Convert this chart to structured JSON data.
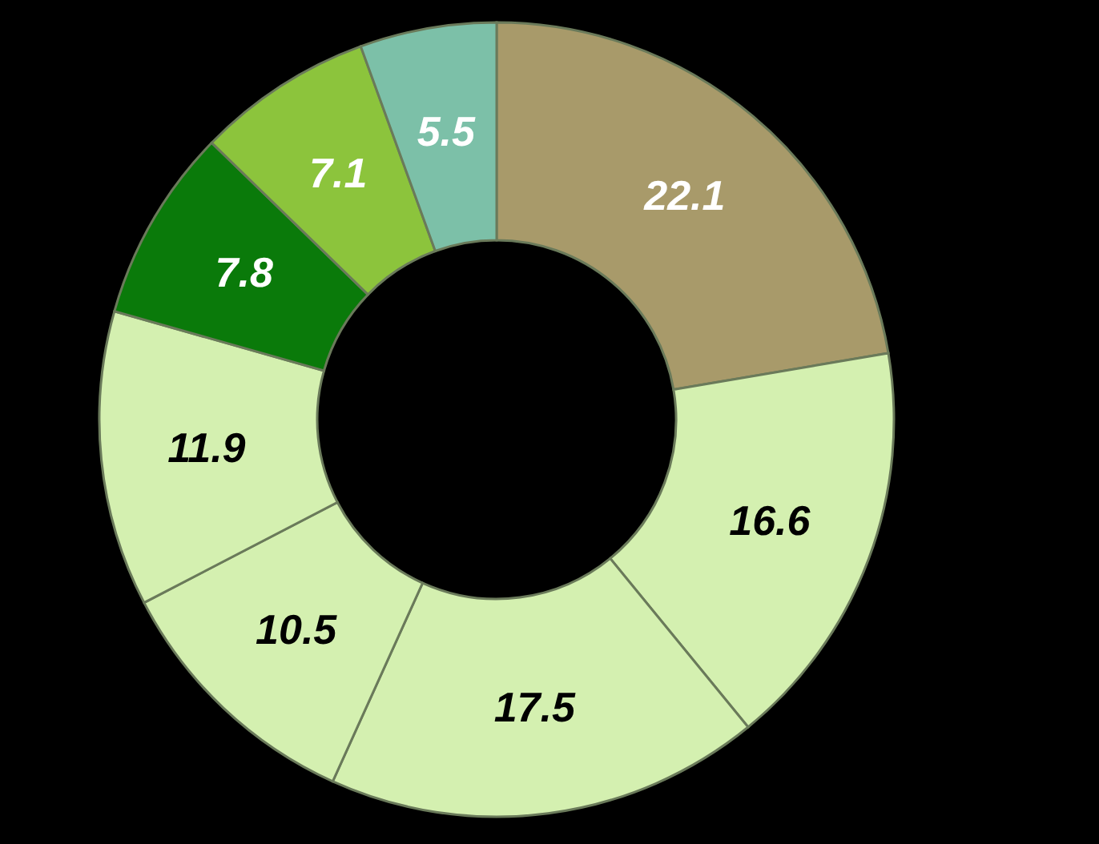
{
  "chart_data": {
    "type": "donut",
    "categories": [
      null,
      null,
      null,
      null,
      null,
      null,
      null,
      null
    ],
    "values": [
      22.1,
      16.6,
      17.5,
      10.5,
      11.9,
      7.8,
      7.1,
      5.5
    ],
    "colors": [
      "#a89a6a",
      "#d4f0b0",
      "#d4f0b0",
      "#d4f0b0",
      "#d4f0b0",
      "#0a7a0a",
      "#8cc43c",
      "#7cc0a8"
    ],
    "data_labels": true
  }
}
